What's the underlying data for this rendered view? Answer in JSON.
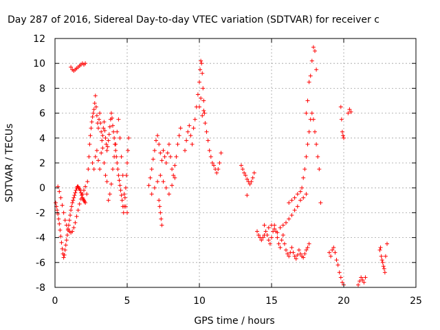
{
  "chart_data": {
    "type": "scatter",
    "title": "Day 287 of 2016, Sidereal Day-to-day VTEC variation (SDTVAR) for receiver c",
    "xlabel": "GPS time / hours",
    "ylabel": "SDTVAR / TECUs",
    "xlim": [
      0,
      25
    ],
    "ylim": [
      -8,
      12
    ],
    "x_ticks": [
      0,
      5,
      10,
      15,
      20,
      25
    ],
    "y_ticks": [
      -8,
      -6,
      -4,
      -2,
      0,
      2,
      4,
      6,
      8,
      10,
      12
    ],
    "grid": true,
    "marker": "+",
    "series": [
      {
        "name": "SDTVAR",
        "color": "#ff0000",
        "x": [
          0.05,
          0.1,
          0.15,
          0.2,
          0.25,
          0.3,
          0.35,
          0.4,
          0.45,
          0.5,
          0.55,
          0.6,
          0.65,
          0.7,
          0.75,
          0.8,
          0.85,
          0.9,
          0.95,
          1.0,
          1.05,
          1.1,
          1.15,
          1.2,
          1.25,
          1.3,
          1.35,
          1.4,
          1.45,
          1.5,
          1.55,
          1.6,
          1.65,
          1.7,
          1.75,
          1.8,
          1.85,
          1.9,
          1.95,
          2.0,
          2.05,
          2.1,
          0.2,
          0.3,
          0.4,
          0.5,
          0.6,
          0.7,
          0.8,
          0.9,
          1.0,
          1.1,
          1.2,
          1.3,
          1.4,
          1.5,
          1.6,
          1.7,
          1.8,
          1.9,
          2.0,
          2.1,
          1.1,
          1.2,
          1.3,
          1.4,
          1.5,
          1.6,
          1.7,
          1.8,
          1.9,
          2.0,
          2.1,
          2.2,
          2.25,
          2.3,
          2.35,
          2.4,
          2.45,
          2.5,
          2.55,
          2.6,
          2.65,
          2.7,
          2.75,
          2.8,
          2.85,
          2.9,
          2.95,
          3.0,
          3.05,
          3.1,
          3.15,
          3.2,
          3.25,
          3.3,
          3.35,
          3.4,
          3.45,
          3.5,
          3.55,
          3.6,
          3.65,
          3.7,
          3.75,
          3.8,
          3.85,
          3.9,
          3.95,
          4.0,
          4.05,
          4.1,
          4.15,
          4.2,
          4.25,
          4.3,
          4.35,
          4.4,
          4.45,
          4.5,
          4.55,
          4.6,
          4.65,
          4.7,
          4.75,
          4.8,
          4.85,
          4.9,
          4.95,
          5.0,
          5.05,
          5.1,
          2.6,
          2.7,
          2.8,
          2.9,
          3.0,
          3.1,
          3.2,
          3.3,
          3.4,
          3.5,
          3.6,
          3.7,
          3.8,
          3.9,
          4.0,
          4.1,
          4.2,
          4.3,
          4.4,
          4.5,
          4.6,
          4.7,
          4.8,
          4.9,
          5.0,
          6.5,
          6.6,
          6.7,
          6.8,
          6.9,
          7.0,
          7.1,
          7.2,
          7.3,
          7.4,
          7.5,
          7.6,
          7.7,
          7.8,
          7.9,
          8.0,
          8.1,
          8.2,
          8.3,
          8.4,
          8.5,
          8.6,
          8.7,
          6.7,
          6.9,
          7.1,
          7.3,
          7.5,
          7.7,
          7.9,
          8.1,
          8.3,
          7.2,
          7.25,
          7.3,
          7.35,
          7.4,
          9.0,
          9.1,
          9.2,
          9.3,
          9.4,
          9.5,
          9.6,
          9.7,
          9.8,
          9.9,
          10.0,
          10.05,
          10.1,
          10.15,
          10.2,
          10.25,
          10.3,
          10.35,
          10.4,
          10.5,
          10.6,
          10.7,
          10.8,
          10.9,
          11.0,
          11.1,
          11.2,
          11.3,
          11.4,
          11.5,
          10.0,
          10.1,
          10.2,
          10.3,
          12.9,
          13.0,
          13.1,
          13.2,
          13.3,
          13.4,
          13.5,
          13.6,
          13.7,
          13.8,
          13.3,
          14.0,
          14.1,
          14.2,
          14.3,
          14.4,
          14.5,
          14.6,
          14.7,
          14.8,
          14.9,
          15.0,
          15.1,
          15.2,
          15.3,
          15.4,
          15.5,
          15.6,
          15.7,
          15.8,
          15.9,
          16.0,
          16.1,
          16.2,
          16.3,
          16.4,
          16.5,
          16.6,
          16.7,
          16.8,
          16.9,
          17.0,
          17.1,
          17.2,
          17.3,
          17.4,
          17.5,
          17.6,
          14.5,
          14.8,
          15.0,
          15.2,
          15.4,
          15.6,
          15.8,
          16.0,
          16.2,
          16.4,
          16.6,
          16.8,
          17.0,
          17.2,
          17.4,
          16.2,
          16.4,
          16.6,
          16.8,
          17.0,
          17.1,
          17.2,
          17.3,
          17.4,
          17.5,
          17.6,
          17.7,
          17.8,
          17.9,
          18.0,
          18.1,
          18.2,
          18.3,
          18.4,
          17.4,
          17.6,
          17.8,
          18.0,
          17.5,
          17.7,
          17.9,
          18.1,
          19.0,
          19.1,
          19.2,
          19.3,
          19.4,
          19.5,
          19.6,
          19.7,
          19.8,
          19.9,
          20.0,
          19.8,
          19.85,
          19.9,
          19.95,
          20.0,
          20.3,
          20.4,
          20.5,
          21.0,
          21.1,
          21.2,
          21.3,
          21.4,
          21.5,
          22.5,
          22.6,
          22.7,
          22.8,
          22.9,
          23.0,
          22.55,
          22.65,
          22.75,
          22.85
        ],
        "y": [
          -1.2,
          -1.5,
          -1.8,
          -2.1,
          -2.5,
          -2.9,
          -3.4,
          -3.9,
          -4.4,
          -4.9,
          -5.3,
          -5.6,
          -5.4,
          -5.0,
          -4.6,
          -4.2,
          -3.8,
          -3.4,
          -3.0,
          -2.6,
          -2.2,
          -1.8,
          -1.5,
          -1.2,
          -1.0,
          -0.8,
          -0.6,
          -0.4,
          -0.2,
          0.0,
          0.1,
          0.1,
          0.0,
          -0.1,
          -0.2,
          -0.4,
          -0.6,
          -0.8,
          -0.9,
          -1.0,
          -1.1,
          -1.2,
          0.1,
          -0.3,
          -0.8,
          -1.4,
          -2.0,
          -2.6,
          -3.0,
          -3.3,
          -3.5,
          -3.6,
          -3.5,
          -3.2,
          -2.8,
          -2.3,
          -1.8,
          -1.3,
          -0.9,
          -0.5,
          -0.2,
          0.1,
          9.7,
          9.5,
          9.4,
          9.5,
          9.6,
          9.7,
          9.8,
          9.9,
          10.0,
          9.9,
          10.0,
          -0.5,
          0.5,
          1.5,
          2.5,
          3.5,
          4.2,
          4.8,
          5.3,
          5.7,
          6.0,
          6.3,
          6.8,
          7.4,
          6.5,
          5.8,
          5.2,
          4.8,
          5.5,
          6.0,
          5.2,
          4.5,
          3.8,
          4.2,
          4.8,
          5.3,
          4.6,
          4.0,
          3.5,
          3.0,
          3.3,
          3.8,
          4.3,
          4.9,
          5.5,
          6.0,
          5.6,
          5.0,
          4.5,
          4.0,
          3.5,
          3.0,
          2.5,
          2.0,
          1.5,
          1.0,
          0.6,
          0.2,
          -0.2,
          -0.6,
          -1.0,
          -1.5,
          -2.0,
          -1.5,
          -0.8,
          0.0,
          1.0,
          2.0,
          3.0,
          4.0,
          2.0,
          1.5,
          2.5,
          3.0,
          2.2,
          1.5,
          2.8,
          3.2,
          2.0,
          1.0,
          0.5,
          -1.0,
          -0.5,
          0.3,
          1.5,
          2.5,
          3.5,
          4.5,
          5.5,
          4.0,
          2.5,
          1.0,
          -0.5,
          -1.5,
          -2.0,
          0.2,
          0.8,
          1.5,
          2.3,
          3.0,
          3.8,
          4.2,
          3.5,
          2.8,
          2.2,
          3.0,
          2.5,
          2.0,
          2.8,
          3.5,
          2.5,
          1.5,
          1.0,
          1.8,
          2.5,
          3.5,
          4.2,
          4.8,
          -0.5,
          0.0,
          0.5,
          1.0,
          0.5,
          0.0,
          -0.5,
          0.2,
          0.8,
          -1.0,
          -1.5,
          -2.0,
          -2.5,
          -3.0,
          3.0,
          3.8,
          4.5,
          5.0,
          4.2,
          3.5,
          4.8,
          5.5,
          6.5,
          7.5,
          8.5,
          9.5,
          10.2,
          10.0,
          9.2,
          8.0,
          7.0,
          6.0,
          5.2,
          4.5,
          3.8,
          3.0,
          2.5,
          2.0,
          1.8,
          1.5,
          1.2,
          1.5,
          2.0,
          2.8,
          6.5,
          7.2,
          5.8,
          6.2,
          1.8,
          1.5,
          1.2,
          1.0,
          0.7,
          0.5,
          0.3,
          0.5,
          0.8,
          1.2,
          -0.6,
          -3.5,
          -3.8,
          -4.0,
          -4.2,
          -4.0,
          -3.8,
          -3.5,
          -3.8,
          -4.2,
          -4.5,
          -4.0,
          -3.5,
          -3.0,
          -3.5,
          -4.0,
          -4.5,
          -4.8,
          -4.2,
          -3.8,
          -4.5,
          -5.0,
          -5.3,
          -5.5,
          -5.2,
          -4.8,
          -5.2,
          -5.5,
          -5.7,
          -5.4,
          -5.0,
          -5.3,
          -5.5,
          -5.6,
          -5.3,
          -5.0,
          -4.8,
          -4.5,
          -3.0,
          -3.2,
          -3.0,
          -3.3,
          -3.6,
          -3.2,
          -3.0,
          -2.8,
          -2.5,
          -2.2,
          -1.8,
          -1.5,
          -1.0,
          -0.8,
          -0.5,
          -1.2,
          -1.0,
          -0.8,
          -0.5,
          -0.3,
          0.0,
          0.8,
          1.5,
          2.5,
          3.5,
          4.5,
          5.5,
          6.0,
          5.5,
          4.5,
          3.5,
          2.5,
          1.5,
          -1.2,
          6.0,
          8.5,
          10.2,
          11.0,
          7.0,
          9.0,
          11.3,
          9.5,
          -5.2,
          -5.5,
          -5.0,
          -4.8,
          -5.2,
          -5.8,
          -6.2,
          -6.8,
          -7.2,
          -7.6,
          -7.8,
          6.5,
          5.5,
          4.5,
          4.2,
          4.0,
          6.0,
          6.3,
          6.1,
          -7.8,
          -7.5,
          -7.2,
          -7.4,
          -7.6,
          -7.2,
          -5.0,
          -5.5,
          -6.0,
          -6.5,
          -5.5,
          -4.5,
          -4.8,
          -5.8,
          -6.3,
          -6.8
        ]
      }
    ]
  }
}
